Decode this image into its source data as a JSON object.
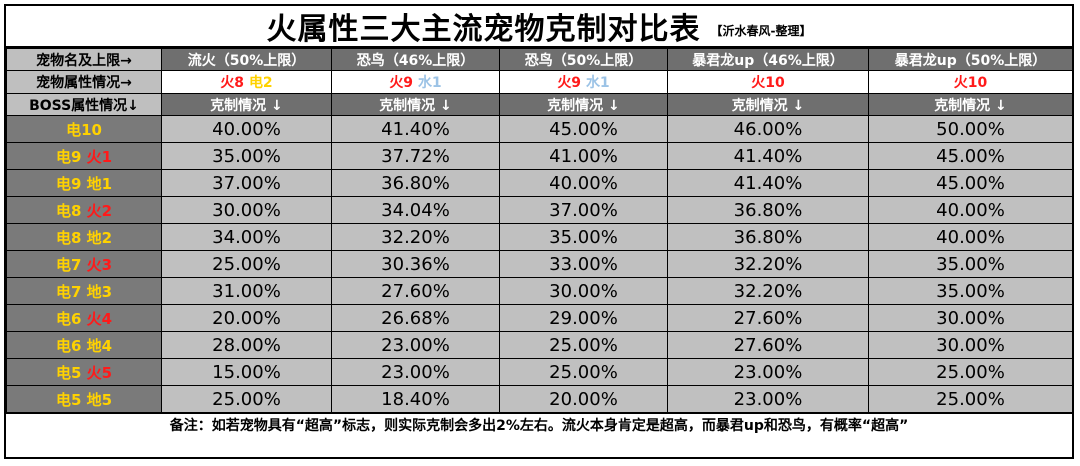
{
  "title": "火属性三大主流宠物克制对比表",
  "credit": "【沂水春风-整理】",
  "row_headers": {
    "pet_name": "宠物名及上限→",
    "pet_attr": "宠物属性情况→",
    "boss_attr": "BOSS属性情况↓"
  },
  "pets": [
    {
      "name": "流火（50%上限）",
      "attr": [
        {
          "t": "火8",
          "c": "fire"
        },
        {
          "t": " ",
          "c": "ink"
        },
        {
          "t": "电2",
          "c": "elec"
        }
      ]
    },
    {
      "name": "恐鸟（46%上限）",
      "attr": [
        {
          "t": "火9",
          "c": "fire"
        },
        {
          "t": " ",
          "c": "ink"
        },
        {
          "t": "水1",
          "c": "water"
        }
      ]
    },
    {
      "name": "恐鸟（50%上限）",
      "attr": [
        {
          "t": "火9",
          "c": "fire"
        },
        {
          "t": " ",
          "c": "ink"
        },
        {
          "t": "水1",
          "c": "water"
        }
      ]
    },
    {
      "name": "暴君龙up（46%上限）",
      "attr": [
        {
          "t": "火10",
          "c": "fire"
        }
      ]
    },
    {
      "name": "暴君龙up（50%上限）",
      "attr": [
        {
          "t": "火10",
          "c": "fire"
        }
      ]
    }
  ],
  "restraint_label": "克制情况 ↓",
  "rows": [
    {
      "boss": [
        {
          "t": "电10",
          "c": "elec"
        }
      ],
      "values": [
        "40.00%",
        "41.40%",
        "45.00%",
        "46.00%",
        "50.00%"
      ]
    },
    {
      "boss": [
        {
          "t": "电9 ",
          "c": "elec"
        },
        {
          "t": "火1",
          "c": "fire"
        }
      ],
      "values": [
        "35.00%",
        "37.72%",
        "41.00%",
        "41.40%",
        "45.00%"
      ]
    },
    {
      "boss": [
        {
          "t": "电9 ",
          "c": "elec"
        },
        {
          "t": "地1",
          "c": "earth"
        }
      ],
      "values": [
        "37.00%",
        "36.80%",
        "40.00%",
        "41.40%",
        "45.00%"
      ]
    },
    {
      "boss": [
        {
          "t": "电8 ",
          "c": "elec"
        },
        {
          "t": "火2",
          "c": "fire"
        }
      ],
      "values": [
        "30.00%",
        "34.04%",
        "37.00%",
        "36.80%",
        "40.00%"
      ]
    },
    {
      "boss": [
        {
          "t": "电8 ",
          "c": "elec"
        },
        {
          "t": "地2",
          "c": "earth"
        }
      ],
      "values": [
        "34.00%",
        "32.20%",
        "35.00%",
        "36.80%",
        "40.00%"
      ]
    },
    {
      "boss": [
        {
          "t": "电7 ",
          "c": "elec"
        },
        {
          "t": "火3",
          "c": "fire"
        }
      ],
      "values": [
        "25.00%",
        "30.36%",
        "33.00%",
        "32.20%",
        "35.00%"
      ]
    },
    {
      "boss": [
        {
          "t": "电7 ",
          "c": "elec"
        },
        {
          "t": "地3",
          "c": "earth"
        }
      ],
      "values": [
        "31.00%",
        "27.60%",
        "30.00%",
        "32.20%",
        "35.00%"
      ]
    },
    {
      "boss": [
        {
          "t": "电6 ",
          "c": "elec"
        },
        {
          "t": "火4",
          "c": "fire"
        }
      ],
      "values": [
        "20.00%",
        "26.68%",
        "29.00%",
        "27.60%",
        "30.00%"
      ]
    },
    {
      "boss": [
        {
          "t": "电6 ",
          "c": "elec"
        },
        {
          "t": "地4",
          "c": "earth"
        }
      ],
      "values": [
        "28.00%",
        "23.00%",
        "25.00%",
        "27.60%",
        "30.00%"
      ]
    },
    {
      "boss": [
        {
          "t": "电5 ",
          "c": "elec"
        },
        {
          "t": "火5",
          "c": "fire"
        }
      ],
      "values": [
        "15.00%",
        "23.00%",
        "25.00%",
        "23.00%",
        "25.00%"
      ]
    },
    {
      "boss": [
        {
          "t": "电5 ",
          "c": "elec"
        },
        {
          "t": "地5",
          "c": "earth"
        }
      ],
      "values": [
        "25.00%",
        "18.40%",
        "20.00%",
        "23.00%",
        "25.00%"
      ]
    }
  ],
  "footer": "备注：如若宠物具有“超高”标志，则实际克制会多出2%左右。流火本身肯定是超高，而暴君up和恐鸟，有概率“超高”",
  "colors": {
    "fire": "#ff1a1a",
    "elec": "#ffd200",
    "water": "#9cc3e6",
    "header_bg": "#6f6f6f",
    "rowhead_bg": "#7a7a7a",
    "cell_bg": "#c0c0c0"
  }
}
